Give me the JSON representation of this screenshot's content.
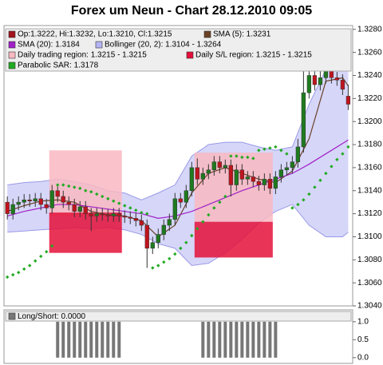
{
  "chart_data": [
    {
      "type": "candlestick",
      "title": "Forex um Neun - Chart 28.12.2010 09:05",
      "xlim": [
        -0.6,
        61.8
      ],
      "ylim": [
        1.304,
        1.32833
      ],
      "yticks": [
        {
          "value": 1.304,
          "label": "1.3040"
        },
        {
          "value": 1.306,
          "label": "1.3060"
        },
        {
          "value": 1.308,
          "label": "1.3080"
        },
        {
          "value": 1.31,
          "label": "1.3100"
        },
        {
          "value": 1.312,
          "label": "1.3120"
        },
        {
          "value": 1.314,
          "label": "1.3140"
        },
        {
          "value": 1.316,
          "label": "1.3160"
        },
        {
          "value": 1.318,
          "label": "1.3180"
        },
        {
          "value": 1.32,
          "label": "1.3200"
        },
        {
          "value": 1.322,
          "label": "1.3220"
        },
        {
          "value": 1.324,
          "label": "1.3240"
        },
        {
          "value": 1.326,
          "label": "1.3260"
        },
        {
          "value": 1.328,
          "label": "1.3280"
        }
      ],
      "ohlc": {
        "name": "Op:1.3222, Hi:1.3232, Lo:1.3210, Cl:1.3215",
        "color": "#a0141e",
        "up_color": "#1f7a1f",
        "down_color": "#c0141e",
        "open": [
          1.313,
          1.312,
          1.3128,
          1.313,
          1.3132,
          1.3131,
          1.3133,
          1.3128,
          1.3125,
          1.314,
          1.3135,
          1.313,
          1.3128,
          1.3122,
          1.3126,
          1.312,
          1.3118,
          1.312,
          1.3119,
          1.3118,
          1.312,
          1.3118,
          1.3117,
          1.3116,
          1.3114,
          1.311,
          1.309,
          1.3095,
          1.3102,
          1.311,
          1.3115,
          1.3133,
          1.313,
          1.314,
          1.316,
          1.315,
          1.3155,
          1.3158,
          1.3165,
          1.316,
          1.3162,
          1.3145,
          1.3158,
          1.315,
          1.3152,
          1.3148,
          1.3145,
          1.315,
          1.3142,
          1.3152,
          1.3158,
          1.316,
          1.3165,
          1.3178,
          1.3225,
          1.324,
          1.3232,
          1.3238,
          1.3244,
          1.3238,
          1.3236,
          1.3222
        ],
        "high": [
          1.3135,
          1.3133,
          1.3135,
          1.3137,
          1.3137,
          1.3138,
          1.3138,
          1.3133,
          1.3145,
          1.3145,
          1.314,
          1.3135,
          1.3133,
          1.3131,
          1.3131,
          1.3125,
          1.3125,
          1.3125,
          1.3124,
          1.3125,
          1.3125,
          1.3123,
          1.3122,
          1.3121,
          1.3119,
          1.3115,
          1.31,
          1.3107,
          1.3115,
          1.312,
          1.3138,
          1.3138,
          1.3145,
          1.3165,
          1.3168,
          1.316,
          1.3163,
          1.317,
          1.317,
          1.3167,
          1.3167,
          1.3163,
          1.3163,
          1.3157,
          1.3157,
          1.3153,
          1.3155,
          1.3155,
          1.3157,
          1.3163,
          1.3165,
          1.317,
          1.3185,
          1.3245,
          1.325,
          1.3255,
          1.325,
          1.3258,
          1.3249,
          1.3243,
          1.3241,
          1.3232
        ],
        "low": [
          1.3115,
          1.3115,
          1.3123,
          1.3125,
          1.3126,
          1.3126,
          1.3123,
          1.312,
          1.312,
          1.313,
          1.3125,
          1.3123,
          1.3117,
          1.3117,
          1.3115,
          1.3105,
          1.3113,
          1.3114,
          1.3113,
          1.3113,
          1.3113,
          1.3112,
          1.3111,
          1.3109,
          1.3105,
          1.3073,
          1.3085,
          1.309,
          1.3097,
          1.3105,
          1.311,
          1.3125,
          1.3125,
          1.3135,
          1.3145,
          1.3145,
          1.315,
          1.3153,
          1.3155,
          1.3155,
          1.3135,
          1.314,
          1.3145,
          1.3145,
          1.3143,
          1.314,
          1.314,
          1.3137,
          1.3137,
          1.3147,
          1.3153,
          1.3155,
          1.316,
          1.3173,
          1.322,
          1.3227,
          1.3227,
          1.3233,
          1.3233,
          1.3231,
          1.3223,
          1.321
        ],
        "close": [
          1.312,
          1.3128,
          1.313,
          1.3132,
          1.3131,
          1.3133,
          1.3128,
          1.3125,
          1.314,
          1.3135,
          1.313,
          1.3128,
          1.3122,
          1.3126,
          1.312,
          1.3118,
          1.312,
          1.3119,
          1.3118,
          1.312,
          1.3118,
          1.3117,
          1.3116,
          1.3114,
          1.311,
          1.309,
          1.3095,
          1.3102,
          1.311,
          1.3115,
          1.3133,
          1.313,
          1.314,
          1.316,
          1.315,
          1.3155,
          1.3158,
          1.3165,
          1.316,
          1.3162,
          1.3145,
          1.3158,
          1.315,
          1.3152,
          1.3148,
          1.3145,
          1.315,
          1.3142,
          1.3152,
          1.3158,
          1.316,
          1.3165,
          1.3178,
          1.3225,
          1.324,
          1.3232,
          1.3238,
          1.3244,
          1.3238,
          1.3236,
          1.3228,
          1.3215
        ]
      },
      "bands": {
        "name": "Bollinger (20, 2): 1.3104 - 1.3264",
        "color": "#b4b4f4",
        "x": [
          0,
          3,
          6,
          9,
          12,
          15,
          18,
          21,
          24,
          27,
          30,
          33,
          36,
          39,
          42,
          45,
          48,
          51,
          54,
          57,
          60,
          61
        ],
        "upper": [
          1.3145,
          1.3147,
          1.3148,
          1.315,
          1.3148,
          1.3145,
          1.314,
          1.3138,
          1.3132,
          1.3138,
          1.3145,
          1.317,
          1.318,
          1.3182,
          1.3182,
          1.3178,
          1.3175,
          1.3178,
          1.3215,
          1.3245,
          1.3262,
          1.3264
        ],
        "lower": [
          1.3104,
          1.3105,
          1.3106,
          1.3107,
          1.3108,
          1.3107,
          1.3108,
          1.3106,
          1.3102,
          1.3094,
          1.309,
          1.3075,
          1.3077,
          1.3086,
          1.3098,
          1.3112,
          1.3122,
          1.3128,
          1.311,
          1.31,
          1.31,
          1.3104
        ]
      },
      "regions": [
        {
          "name": "Daily trading region: 1.3215 - 1.3215",
          "color": "#f9b9c2",
          "spans": [
            {
              "x0": 7.5,
              "x1": 20.5,
              "low": 1.3118,
              "high": 1.3175
            },
            {
              "x0": 33.5,
              "x1": 47.5,
              "low": 1.3113,
              "high": 1.3173
            }
          ]
        },
        {
          "name": "Daily S/L region: 1.3215 - 1.3215",
          "color": "#e4103a",
          "spans": [
            {
              "x0": 7.5,
              "x1": 20.5,
              "low": 1.3086,
              "high": 1.3121
            },
            {
              "x0": 33.5,
              "x1": 47.5,
              "low": 1.3082,
              "high": 1.3113
            }
          ]
        }
      ],
      "lines": [
        {
          "name": "SMA (5): 1.3231",
          "color": "#6b4226",
          "x": [
            0,
            3,
            6,
            9,
            12,
            15,
            18,
            21,
            24,
            27,
            30,
            33,
            36,
            39,
            42,
            45,
            48,
            51,
            54,
            57,
            60,
            61
          ],
          "values": [
            1.3122,
            1.3127,
            1.3131,
            1.3132,
            1.313,
            1.3122,
            1.3119,
            1.3118,
            1.3114,
            1.31,
            1.311,
            1.3138,
            1.3155,
            1.316,
            1.3155,
            1.315,
            1.3147,
            1.3157,
            1.3185,
            1.3235,
            1.3238,
            1.3231
          ]
        },
        {
          "name": "SMA (20): 1.3184",
          "color": "#a020c8",
          "x": [
            0,
            3,
            6,
            9,
            12,
            15,
            18,
            21,
            24,
            27,
            30,
            33,
            36,
            39,
            42,
            45,
            48,
            51,
            54,
            57,
            60,
            61
          ],
          "values": [
            1.3118,
            1.3122,
            1.3125,
            1.3128,
            1.3128,
            1.3126,
            1.3124,
            1.3122,
            1.312,
            1.3116,
            1.3118,
            1.3122,
            1.3128,
            1.3134,
            1.314,
            1.3145,
            1.315,
            1.3155,
            1.3163,
            1.3172,
            1.3181,
            1.3184
          ]
        }
      ],
      "sar": {
        "name": "Parabolic SAR: 1.3178",
        "color": "#22aa22",
        "values": [
          1.3065,
          1.3067,
          1.3069,
          1.3072,
          1.3075,
          1.3079,
          1.3083,
          1.3087,
          1.3092,
          1.3145,
          1.3145,
          1.3144,
          1.3143,
          1.3142,
          1.314,
          1.3139,
          1.3137,
          1.3135,
          1.3133,
          1.3131,
          1.3129,
          1.3127,
          1.3125,
          1.3123,
          1.3121,
          1.312,
          1.3073,
          1.3075,
          1.3078,
          1.3081,
          1.3085,
          1.309,
          1.3095,
          1.3101,
          1.3107,
          1.3113,
          1.3119,
          1.3125,
          1.313,
          1.3135,
          1.317,
          1.317,
          1.3169,
          1.3169,
          1.3168,
          1.3175,
          1.3176,
          1.3177,
          1.3178,
          1.3175,
          1.3172,
          1.3125,
          1.3128,
          1.3132,
          1.3137,
          1.3143,
          1.3149,
          1.3155,
          1.3161,
          1.3167,
          1.3172,
          1.3178
        ]
      }
    },
    {
      "type": "bar",
      "xlim": [
        -0.6,
        61.8
      ],
      "ylim": [
        -0.16,
        1.33
      ],
      "yticks": [
        {
          "value": 0,
          "label": "0.0"
        },
        {
          "value": 0.5,
          "label": "0.5"
        },
        {
          "value": 1,
          "label": "1.0"
        }
      ],
      "series": [
        {
          "name": "Long/Short: 0.0000",
          "color": "#777777",
          "values": [
            0,
            0,
            0,
            0,
            0,
            0,
            0,
            0,
            0,
            1,
            1,
            1,
            1,
            1,
            1,
            1,
            1,
            1,
            1,
            1,
            1,
            0,
            0,
            0,
            0,
            0,
            0,
            0,
            0,
            0,
            0,
            0,
            0,
            0,
            0,
            1,
            1,
            1,
            1,
            1,
            1,
            1,
            1,
            1,
            1,
            1,
            1,
            1,
            1,
            0,
            0,
            0,
            0,
            0,
            0,
            0,
            0,
            0,
            0,
            0,
            0,
            0
          ]
        }
      ]
    }
  ]
}
